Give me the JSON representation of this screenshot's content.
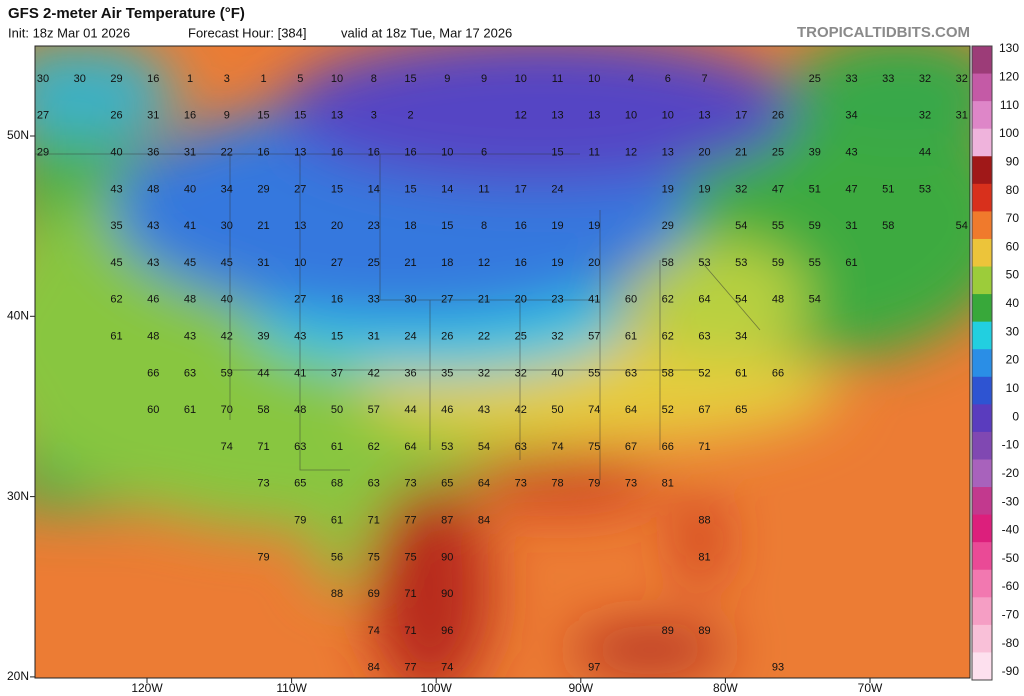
{
  "header": {
    "title": "GFS 2-meter Air Temperature (°F)",
    "init": "Init: 18z Mar 01 2026",
    "forecast_hour": "Forecast Hour: [384]",
    "valid": "valid at 18z Tue, Mar 17 2026",
    "site": "TROPICALTIDBITS.COM"
  },
  "latitude_labels": [
    "50N",
    "40N",
    "30N",
    "20N"
  ],
  "longitude_labels": [
    "120W",
    "110W",
    "100W",
    "90W",
    "80W",
    "70W"
  ],
  "colorbar": {
    "labels": [
      130,
      120,
      110,
      100,
      90,
      80,
      70,
      60,
      50,
      40,
      30,
      20,
      10,
      0,
      -10,
      -20,
      -30,
      -40,
      -50,
      -60,
      -70,
      -80,
      -90
    ],
    "colors": [
      "#9c3c78",
      "#c45aa6",
      "#de86c8",
      "#efb3dc",
      "#a01818",
      "#d8301c",
      "#f07a2c",
      "#ecc43a",
      "#9ccc3a",
      "#38a83a",
      "#22cfe0",
      "#2a8ee6",
      "#2e54d2",
      "#5a3cbe",
      "#8048b2",
      "#a862bc",
      "#c2398e",
      "#dc1f7c",
      "#ea4a96",
      "#f278b0",
      "#f59ec4",
      "#f9c0d8",
      "#fde0ee"
    ]
  },
  "stations": [
    [
      30,
      30,
      29,
      16,
      1,
      3,
      1,
      5,
      10,
      8,
      15,
      9,
      9,
      10,
      11,
      10,
      4,
      6,
      7,
      null,
      null,
      25,
      33,
      33,
      32,
      32
    ],
    [
      27,
      null,
      26,
      31,
      16,
      9,
      15,
      15,
      13,
      3,
      2,
      null,
      null,
      12,
      13,
      13,
      10,
      10,
      13,
      17,
      26,
      null,
      34,
      null,
      32,
      31
    ],
    [
      29,
      null,
      40,
      36,
      31,
      22,
      16,
      13,
      16,
      16,
      16,
      10,
      6,
      null,
      15,
      11,
      12,
      13,
      20,
      21,
      25,
      39,
      43,
      null,
      44,
      null
    ],
    [
      null,
      null,
      43,
      48,
      40,
      34,
      29,
      27,
      15,
      14,
      15,
      14,
      11,
      17,
      24,
      null,
      null,
      19,
      19,
      32,
      47,
      51,
      47,
      51,
      53,
      null
    ],
    [
      null,
      null,
      35,
      43,
      41,
      30,
      21,
      13,
      20,
      23,
      18,
      15,
      8,
      16,
      19,
      19,
      null,
      29,
      null,
      54,
      55,
      59,
      31,
      58,
      null,
      54
    ],
    [
      null,
      null,
      45,
      43,
      45,
      45,
      31,
      10,
      27,
      25,
      21,
      18,
      12,
      16,
      19,
      20,
      null,
      58,
      53,
      53,
      59,
      55,
      61,
      null,
      null,
      null
    ],
    [
      null,
      null,
      62,
      46,
      48,
      40,
      null,
      27,
      16,
      33,
      30,
      27,
      21,
      20,
      23,
      41,
      60,
      62,
      64,
      54,
      48,
      54,
      null,
      null,
      null,
      null
    ],
    [
      null,
      null,
      61,
      48,
      43,
      42,
      39,
      43,
      15,
      31,
      24,
      26,
      22,
      25,
      32,
      57,
      61,
      62,
      63,
      34,
      null,
      null,
      null,
      null,
      null,
      null
    ],
    [
      null,
      null,
      null,
      66,
      63,
      59,
      44,
      41,
      37,
      42,
      36,
      35,
      32,
      32,
      40,
      55,
      63,
      58,
      52,
      61,
      66,
      null,
      null,
      null,
      null,
      null
    ],
    [
      null,
      null,
      null,
      60,
      61,
      70,
      58,
      48,
      50,
      57,
      44,
      46,
      43,
      42,
      50,
      74,
      64,
      52,
      67,
      65,
      null,
      null,
      null,
      null,
      null,
      null
    ],
    [
      null,
      null,
      null,
      null,
      null,
      74,
      71,
      63,
      61,
      62,
      64,
      53,
      54,
      63,
      74,
      75,
      67,
      66,
      71,
      null,
      null,
      null,
      null,
      null,
      null,
      null
    ],
    [
      null,
      null,
      null,
      null,
      null,
      null,
      73,
      65,
      68,
      63,
      73,
      65,
      64,
      73,
      78,
      79,
      73,
      81,
      null,
      null,
      null,
      null,
      null,
      null,
      null,
      null
    ],
    [
      null,
      null,
      null,
      null,
      null,
      null,
      null,
      79,
      61,
      71,
      77,
      87,
      84,
      null,
      null,
      null,
      null,
      null,
      88,
      null,
      null,
      null,
      null,
      null,
      null,
      null
    ],
    [
      null,
      null,
      null,
      null,
      null,
      null,
      79,
      null,
      56,
      75,
      75,
      90,
      null,
      null,
      null,
      null,
      null,
      null,
      81,
      null,
      null,
      null,
      null,
      null,
      null,
      null
    ],
    [
      null,
      null,
      null,
      null,
      null,
      null,
      null,
      null,
      88,
      69,
      71,
      90,
      null,
      null,
      null,
      null,
      null,
      null,
      null,
      null,
      null,
      null,
      null,
      null,
      null,
      null
    ],
    [
      null,
      null,
      null,
      null,
      null,
      null,
      null,
      null,
      null,
      74,
      71,
      96,
      null,
      null,
      null,
      null,
      null,
      89,
      89,
      null,
      null,
      null,
      null,
      null,
      null,
      null
    ],
    [
      null,
      null,
      null,
      null,
      null,
      null,
      null,
      null,
      null,
      84,
      77,
      74,
      null,
      null,
      null,
      97,
      null,
      null,
      null,
      null,
      93,
      null,
      null,
      null,
      null,
      null
    ]
  ]
}
